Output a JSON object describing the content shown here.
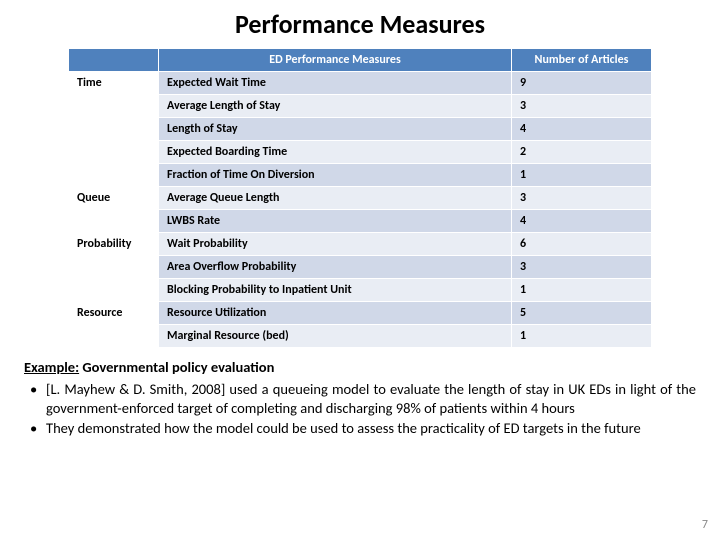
{
  "title": "Performance Measures",
  "table": {
    "columns": [
      "",
      "ED Performance Measures",
      "Number of Articles"
    ],
    "groups": [
      {
        "category": "Time",
        "rows": [
          {
            "measure": "Expected Wait Time",
            "articles": "9"
          },
          {
            "measure": "Average Length of Stay",
            "articles": "3"
          },
          {
            "measure": "Length of Stay",
            "articles": "4"
          },
          {
            "measure": "Expected Boarding Time",
            "articles": "2"
          },
          {
            "measure": "Fraction of Time On Diversion",
            "articles": "1"
          }
        ]
      },
      {
        "category": "Queue",
        "rows": [
          {
            "measure": "Average Queue Length",
            "articles": "3"
          },
          {
            "measure": "LWBS Rate",
            "articles": "4"
          }
        ]
      },
      {
        "category": "Probability",
        "rows": [
          {
            "measure": "Wait Probability",
            "articles": "6"
          },
          {
            "measure": "Area Overflow Probability",
            "articles": "3"
          },
          {
            "measure": "Blocking Probability to Inpatient Unit",
            "articles": "1"
          }
        ]
      },
      {
        "category": "Resource",
        "rows": [
          {
            "measure": "Resource Utilization",
            "articles": "5"
          },
          {
            "measure": "Marginal Resource (bed)",
            "articles": "1"
          }
        ]
      }
    ],
    "header_bg": "#4f81bd",
    "header_fg": "#ffffff",
    "band_colors": [
      "#d0d8e8",
      "#e9edf4"
    ],
    "border_color": "#ffffff"
  },
  "example": {
    "label": "Example:",
    "heading": "Governmental policy evaluation",
    "bullets": [
      "[L. Mayhew & D. Smith, 2008] used a queueing model to evaluate the length of stay in UK EDs in light of the government-enforced target of completing and discharging 98% of patients within 4 hours",
      "They demonstrated how the model could be used to assess the practicality of ED targets in the future"
    ]
  },
  "page_number": "7"
}
